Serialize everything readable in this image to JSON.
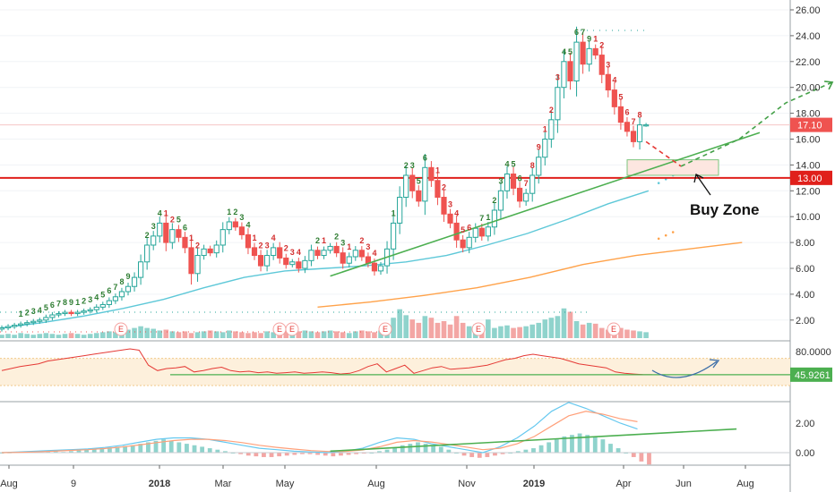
{
  "colors": {
    "up": "#26a69a",
    "down": "#ef5350",
    "support": "#e0201b",
    "trend": "#4caf50",
    "ma_fast": "#5ec8d8",
    "ma_slow": "#ffa24a",
    "rsi": "#e53935",
    "macd": "#65c8ef",
    "macd_signal": "#ffa07a",
    "seq_buy": "#2e7d32",
    "seq_sell": "#d32f2f",
    "zone_fill": "#fde6e0",
    "rsi_band": "#fdf0dc"
  },
  "chart_data": {
    "type": "candlestick",
    "price_axis": {
      "ticks": [
        "26.00",
        "24.00",
        "22.00",
        "20.00",
        "18.00",
        "16.00",
        "14.00",
        "12.00",
        "10.00",
        "8.00",
        "6.00",
        "4.00",
        "2.00"
      ],
      "range": [
        0,
        27
      ]
    },
    "date_axis": [
      "Aug",
      "9",
      "2018",
      "Mar",
      "May",
      "Aug",
      "Nov",
      "2019",
      "Apr",
      "Jun",
      "Aug"
    ],
    "current_price_label": "17.10",
    "support_label": "13.00",
    "support_level": 13.0,
    "annotation": "Buy Zone",
    "earnings_marker": "E",
    "candles": [
      [
        1.3,
        1.4
      ],
      [
        1.4,
        1.5
      ],
      [
        1.5,
        1.6
      ],
      [
        1.6,
        1.7
      ],
      [
        1.7,
        1.8
      ],
      [
        1.8,
        1.9
      ],
      [
        1.9,
        2.0
      ],
      [
        2.0,
        2.2
      ],
      [
        2.2,
        2.4
      ],
      [
        2.4,
        2.5
      ],
      [
        2.5,
        2.6
      ],
      [
        2.6,
        2.5
      ],
      [
        2.5,
        2.6
      ],
      [
        2.6,
        2.7
      ],
      [
        2.7,
        2.8
      ],
      [
        2.8,
        3.0
      ],
      [
        3.0,
        3.2
      ],
      [
        3.2,
        3.5
      ],
      [
        3.5,
        3.8
      ],
      [
        3.8,
        4.2
      ],
      [
        4.2,
        4.6
      ],
      [
        4.6,
        5.3
      ],
      [
        5.3,
        6.5
      ],
      [
        6.5,
        7.8
      ],
      [
        7.8,
        8.5
      ],
      [
        8.5,
        9.5
      ],
      [
        9.5,
        8.0
      ],
      [
        8.0,
        9.0
      ],
      [
        9.0,
        8.4
      ],
      [
        8.4,
        7.6
      ],
      [
        7.6,
        5.6
      ],
      [
        5.6,
        7.0
      ],
      [
        7.0,
        7.5
      ],
      [
        7.5,
        7.2
      ],
      [
        7.2,
        7.8
      ],
      [
        7.8,
        9.0
      ],
      [
        9.0,
        9.6
      ],
      [
        9.6,
        9.2
      ],
      [
        9.2,
        8.6
      ],
      [
        8.6,
        7.6
      ],
      [
        7.6,
        7.0
      ],
      [
        7.0,
        6.2
      ],
      [
        6.2,
        7.0
      ],
      [
        7.0,
        7.6
      ],
      [
        7.6,
        6.8
      ],
      [
        6.8,
        6.3
      ],
      [
        6.3,
        6.5
      ],
      [
        6.5,
        6.0
      ],
      [
        6.0,
        6.6
      ],
      [
        6.6,
        7.4
      ],
      [
        7.4,
        7.0
      ],
      [
        7.0,
        7.4
      ],
      [
        7.4,
        7.7
      ],
      [
        7.7,
        7.2
      ],
      [
        7.2,
        6.4
      ],
      [
        6.4,
        6.9
      ],
      [
        6.9,
        7.4
      ],
      [
        7.4,
        6.9
      ],
      [
        6.9,
        6.4
      ],
      [
        6.4,
        5.8
      ],
      [
        5.8,
        6.2
      ],
      [
        6.2,
        7.5
      ],
      [
        7.5,
        9.5
      ],
      [
        9.5,
        11.5
      ],
      [
        11.5,
        13.2
      ],
      [
        13.2,
        12.0
      ],
      [
        12.0,
        11.2
      ],
      [
        11.2,
        13.8
      ],
      [
        13.8,
        12.8
      ],
      [
        12.8,
        11.5
      ],
      [
        11.5,
        10.2
      ],
      [
        10.2,
        9.5
      ],
      [
        9.5,
        8.2
      ],
      [
        8.2,
        7.6
      ],
      [
        7.6,
        8.4
      ],
      [
        8.4,
        9.1
      ],
      [
        9.1,
        8.5
      ],
      [
        8.5,
        9.2
      ],
      [
        9.2,
        10.5
      ],
      [
        10.5,
        12.0
      ],
      [
        12.0,
        13.3
      ],
      [
        13.3,
        12.2
      ],
      [
        12.2,
        11.2
      ],
      [
        11.2,
        11.8
      ],
      [
        11.8,
        13.2
      ],
      [
        13.2,
        14.6
      ],
      [
        14.6,
        16.0
      ],
      [
        16.0,
        17.5
      ],
      [
        17.5,
        20.0
      ],
      [
        20.0,
        22.0
      ],
      [
        22.0,
        20.5
      ],
      [
        20.5,
        23.5
      ],
      [
        23.5,
        21.8
      ],
      [
        21.8,
        23.0
      ],
      [
        23.0,
        22.5
      ],
      [
        22.5,
        21.0
      ],
      [
        21.0,
        19.8
      ],
      [
        19.8,
        18.5
      ],
      [
        18.5,
        17.3
      ],
      [
        17.3,
        16.6
      ],
      [
        16.6,
        15.8
      ],
      [
        15.8,
        17.1
      ],
      [
        17.1,
        17.1
      ]
    ],
    "projection": [
      [
        0,
        15.8
      ],
      [
        6,
        13.9
      ],
      [
        16,
        16.0
      ],
      [
        24,
        18.8
      ],
      [
        32,
        20.4
      ]
    ],
    "ma_fast": [
      1.4,
      1.8,
      2.3,
      2.9,
      3.6,
      4.5,
      5.3,
      5.8,
      6.0,
      6.2,
      6.5,
      7.0,
      7.8,
      8.7,
      9.8,
      11.0,
      12.0
    ],
    "ma_slow": [
      3.0,
      3.4,
      3.9,
      4.5,
      5.3,
      6.3,
      7.0,
      7.5,
      8.0
    ],
    "trendline": [
      [
        52,
        5.4
      ],
      [
        120,
        16.5
      ]
    ],
    "volume": [
      0.4,
      0.5,
      0.4,
      0.6,
      0.5,
      0.4,
      0.5,
      0.6,
      0.5,
      0.4,
      0.5,
      0.6,
      0.5,
      0.4,
      0.5,
      0.6,
      0.7,
      0.8,
      0.7,
      0.9,
      1.0,
      1.2,
      1.4,
      1.2,
      1.1,
      0.9,
      1.0,
      0.8,
      0.7,
      0.8,
      0.6,
      0.7,
      0.8,
      0.9,
      0.8,
      0.7,
      0.9,
      0.8,
      0.7,
      0.6,
      0.7,
      0.6,
      0.8,
      0.7,
      0.9,
      0.8,
      0.7,
      0.8,
      0.9,
      0.8,
      0.7,
      0.8,
      0.9,
      0.8,
      0.7,
      0.6,
      0.8,
      0.9,
      0.8,
      0.7,
      0.9,
      1.2,
      2.4,
      3.4,
      2.7,
      2.2,
      1.8,
      2.6,
      2.4,
      1.8,
      2.0,
      1.6,
      2.6,
      1.8,
      1.4,
      1.6,
      1.5,
      2.2,
      1.2,
      1.4,
      1.5,
      1.2,
      1.3,
      1.4,
      1.6,
      1.8,
      2.2,
      2.4,
      2.6,
      3.5,
      3.1,
      2.0,
      1.6,
      1.8,
      1.7,
      1.2,
      1.0,
      1.3,
      1.2,
      1.0,
      0.9,
      0.8,
      0.7
    ],
    "rsi_axis": {
      "ticks": [
        "80.0000"
      ],
      "current_label": "45.9261",
      "band": [
        30,
        70
      ],
      "support_line": 46
    },
    "rsi": [
      52,
      55,
      58,
      60,
      62,
      66,
      68,
      70,
      72,
      74,
      76,
      78,
      80,
      82,
      84,
      82,
      60,
      52,
      55,
      56,
      58,
      50,
      52,
      55,
      57,
      52,
      50,
      51,
      49,
      50,
      48,
      49,
      50,
      48,
      49,
      50,
      49,
      47,
      48,
      52,
      58,
      62,
      50,
      55,
      60,
      48,
      52,
      56,
      58,
      54,
      55,
      56,
      58,
      60,
      64,
      68,
      70,
      74,
      76,
      74,
      72,
      70,
      66,
      62,
      60,
      58,
      56,
      50,
      48,
      47,
      46,
      45.9
    ],
    "macd_axis": {
      "ticks": [
        "2.00",
        "0.00"
      ]
    },
    "macd": [
      0,
      0.05,
      0.1,
      0.15,
      0.2,
      0.25,
      0.35,
      0.5,
      0.7,
      0.9,
      1.0,
      1.0,
      0.9,
      0.7,
      0.5,
      0.3,
      0.2,
      0.1,
      0.05,
      0.0,
      0.1,
      0.3,
      0.7,
      1.0,
      0.9,
      0.6,
      0.4,
      0.2,
      0.0,
      0.4,
      1.0,
      1.8,
      2.8,
      3.4,
      3.0,
      2.5,
      2.0,
      1.6
    ],
    "macd_signal": [
      0,
      0.02,
      0.05,
      0.1,
      0.15,
      0.2,
      0.28,
      0.38,
      0.52,
      0.68,
      0.82,
      0.9,
      0.9,
      0.82,
      0.68,
      0.5,
      0.36,
      0.24,
      0.14,
      0.08,
      0.08,
      0.18,
      0.4,
      0.7,
      0.82,
      0.72,
      0.56,
      0.38,
      0.2,
      0.3,
      0.6,
      1.1,
      1.8,
      2.5,
      2.8,
      2.6,
      2.3,
      2.1
    ],
    "macd_trend": [
      [
        52,
        0.1
      ],
      [
        122,
        1.6
      ]
    ],
    "macd_hist": [
      0.0,
      0.02,
      0.05,
      0.05,
      0.05,
      0.1,
      0.1,
      0.1,
      0.05,
      0.1,
      0.15,
      0.2,
      0.25,
      0.3,
      0.35,
      0.4,
      0.45,
      0.5,
      0.6,
      0.7,
      0.8,
      0.9,
      0.8,
      0.7,
      0.6,
      0.5,
      0.4,
      0.3,
      0.2,
      0.1,
      0.0,
      -0.1,
      -0.2,
      -0.25,
      -0.3,
      -0.3,
      -0.25,
      -0.2,
      -0.15,
      -0.1,
      -0.1,
      -0.15,
      -0.2,
      -0.25,
      -0.2,
      -0.15,
      -0.1,
      -0.05,
      0.0,
      0.1,
      0.2,
      0.3,
      0.5,
      0.6,
      0.7,
      0.6,
      0.5,
      0.4,
      0.2,
      0.0,
      -0.2,
      -0.3,
      -0.35,
      -0.3,
      -0.2,
      -0.1,
      0.0,
      0.1,
      0.2,
      0.3,
      0.5,
      0.7,
      0.9,
      1.1,
      1.2,
      1.3,
      1.2,
      1.1,
      0.9,
      0.6,
      0.3,
      0.0,
      -0.3,
      -0.6,
      -0.8
    ],
    "sequential": [
      {
        "i": 3,
        "t": "1",
        "b": 1
      },
      {
        "i": 4,
        "t": "2",
        "b": 1
      },
      {
        "i": 5,
        "t": "3",
        "b": 1
      },
      {
        "i": 6,
        "t": "4",
        "b": 1
      },
      {
        "i": 7,
        "t": "5",
        "b": 1
      },
      {
        "i": 8,
        "t": "6",
        "b": 1
      },
      {
        "i": 9,
        "t": "7",
        "b": 1
      },
      {
        "i": 10,
        "t": "8",
        "b": 1
      },
      {
        "i": 11,
        "t": "9",
        "b": 1
      },
      {
        "i": 12,
        "t": "1",
        "b": 1
      },
      {
        "i": 13,
        "t": "2",
        "b": 1
      },
      {
        "i": 14,
        "t": "3",
        "b": 1
      },
      {
        "i": 15,
        "t": "4",
        "b": 1
      },
      {
        "i": 16,
        "t": "5",
        "b": 1
      },
      {
        "i": 17,
        "t": "6",
        "b": 1
      },
      {
        "i": 18,
        "t": "7",
        "b": 1
      },
      {
        "i": 19,
        "t": "8",
        "b": 1
      },
      {
        "i": 20,
        "t": "9",
        "b": 1
      },
      {
        "i": 23,
        "t": "2",
        "b": 1
      },
      {
        "i": 24,
        "t": "3",
        "b": 1
      },
      {
        "i": 25,
        "t": "4",
        "b": 1
      },
      {
        "i": 28,
        "t": "5",
        "b": 1
      },
      {
        "i": 29,
        "t": "6",
        "b": 1
      },
      {
        "i": 26,
        "t": "1",
        "b": 0
      },
      {
        "i": 27,
        "t": "2",
        "b": 0
      },
      {
        "i": 30,
        "t": "1",
        "b": 0
      },
      {
        "i": 31,
        "t": "2",
        "b": 0
      },
      {
        "i": 36,
        "t": "1",
        "b": 1
      },
      {
        "i": 37,
        "t": "2",
        "b": 1
      },
      {
        "i": 38,
        "t": "3",
        "b": 1
      },
      {
        "i": 39,
        "t": "4",
        "b": 1
      },
      {
        "i": 40,
        "t": "1",
        "b": 0
      },
      {
        "i": 41,
        "t": "2",
        "b": 0
      },
      {
        "i": 42,
        "t": "3",
        "b": 0
      },
      {
        "i": 43,
        "t": "4",
        "b": 0
      },
      {
        "i": 45,
        "t": "2",
        "b": 0
      },
      {
        "i": 46,
        "t": "3",
        "b": 0
      },
      {
        "i": 47,
        "t": "4",
        "b": 0
      },
      {
        "i": 50,
        "t": "2",
        "b": 1
      },
      {
        "i": 51,
        "t": "1",
        "b": 0
      },
      {
        "i": 53,
        "t": "2",
        "b": 1
      },
      {
        "i": 54,
        "t": "3",
        "b": 1
      },
      {
        "i": 55,
        "t": "1",
        "b": 0
      },
      {
        "i": 57,
        "t": "2",
        "b": 0
      },
      {
        "i": 58,
        "t": "3",
        "b": 0
      },
      {
        "i": 59,
        "t": "4",
        "b": 0
      },
      {
        "i": 62,
        "t": "1",
        "b": 1
      },
      {
        "i": 64,
        "t": "2",
        "b": 1
      },
      {
        "i": 65,
        "t": "3",
        "b": 1
      },
      {
        "i": 66,
        "t": "5",
        "b": 1
      },
      {
        "i": 67,
        "t": "6",
        "b": 1
      },
      {
        "i": 69,
        "t": "1",
        "b": 0
      },
      {
        "i": 70,
        "t": "2",
        "b": 0
      },
      {
        "i": 71,
        "t": "3",
        "b": 0
      },
      {
        "i": 72,
        "t": "4",
        "b": 0
      },
      {
        "i": 73,
        "t": "5",
        "b": 0
      },
      {
        "i": 74,
        "t": "6",
        "b": 0
      },
      {
        "i": 76,
        "t": "7",
        "b": 1
      },
      {
        "i": 77,
        "t": "1",
        "b": 1
      },
      {
        "i": 78,
        "t": "2",
        "b": 1
      },
      {
        "i": 79,
        "t": "3",
        "b": 1
      },
      {
        "i": 80,
        "t": "4",
        "b": 1
      },
      {
        "i": 81,
        "t": "5",
        "b": 1
      },
      {
        "i": 82,
        "t": "6",
        "b": 1
      },
      {
        "i": 83,
        "t": "7",
        "b": 0
      },
      {
        "i": 84,
        "t": "8",
        "b": 0
      },
      {
        "i": 85,
        "t": "9",
        "b": 0
      },
      {
        "i": 86,
        "t": "1",
        "b": 0
      },
      {
        "i": 87,
        "t": "2",
        "b": 0
      },
      {
        "i": 88,
        "t": "3",
        "b": 0
      },
      {
        "i": 89,
        "t": "4",
        "b": 1
      },
      {
        "i": 90,
        "t": "5",
        "b": 1
      },
      {
        "i": 91,
        "t": "6",
        "b": 1
      },
      {
        "i": 92,
        "t": "7",
        "b": 1
      },
      {
        "i": 93,
        "t": "9",
        "b": 1
      },
      {
        "i": 94,
        "t": "1",
        "b": 0
      },
      {
        "i": 95,
        "t": "2",
        "b": 0
      },
      {
        "i": 96,
        "t": "3",
        "b": 0
      },
      {
        "i": 97,
        "t": "4",
        "b": 0
      },
      {
        "i": 98,
        "t": "5",
        "b": 0
      },
      {
        "i": 99,
        "t": "6",
        "b": 0
      },
      {
        "i": 100,
        "t": "7",
        "b": 0
      },
      {
        "i": 101,
        "t": "8",
        "b": 0
      }
    ]
  }
}
